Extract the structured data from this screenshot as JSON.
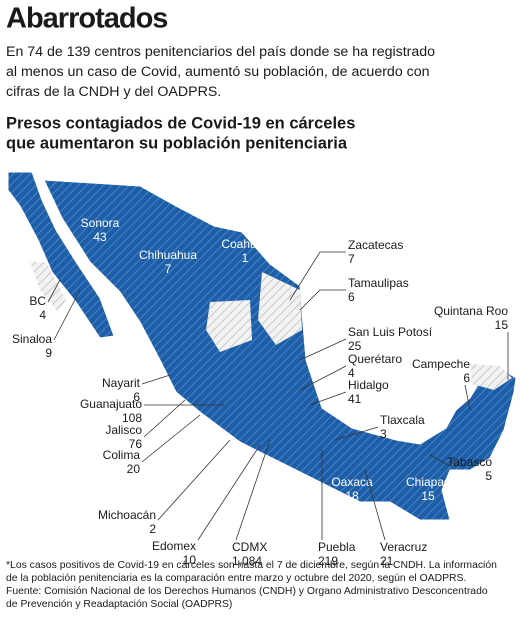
{
  "header": {
    "title": "Abarrotados",
    "intro": [
      "En 74 de 139 centros penitenciarios del país donde se ha registrado",
      "al menos un caso de Covid, aumentó su población, de acuerdo con",
      "cifras de la CNDH y del OADPRS."
    ],
    "subtitle": [
      "Presos contagiados de Covid-19 en cárceles",
      "que aumentaron su población penitenciaria"
    ]
  },
  "states": [
    {
      "name": "Sonora",
      "value": 43
    },
    {
      "name": "Chihuahua",
      "value": 7
    },
    {
      "name": "Coahuila",
      "value": 1
    },
    {
      "name": "Zacatecas",
      "value": 7
    },
    {
      "name": "Tamaulipas",
      "value": 6
    },
    {
      "name": "San Luis Potosí",
      "value": 25
    },
    {
      "name": "Querétaro",
      "value": 4
    },
    {
      "name": "Hidalgo",
      "value": 41
    },
    {
      "name": "Quintana Roo",
      "value": 15
    },
    {
      "name": "Campeche",
      "value": 6
    },
    {
      "name": "Tlaxcala",
      "value": 3
    },
    {
      "name": "Tabasco",
      "value": 5
    },
    {
      "name": "Oaxaca",
      "value": 18
    },
    {
      "name": "Chiapas",
      "value": 15
    },
    {
      "name": "Veracruz",
      "value": 21
    },
    {
      "name": "Puebla",
      "value": 219
    },
    {
      "name": "CDMX",
      "value": {
        "value": 1084,
        "label": "1,084"
      }
    },
    {
      "name": "Edomex",
      "value": 10
    },
    {
      "name": "Michoacán",
      "value": 2
    },
    {
      "name": "Colima",
      "value": 20
    },
    {
      "name": "Jalisco",
      "value": 76
    },
    {
      "name": "Guanajuato",
      "value": 108
    },
    {
      "name": "Nayarit",
      "value": 6
    },
    {
      "name": "Sinaloa",
      "value": 9
    },
    {
      "name": "BC",
      "value": 4
    }
  ],
  "footnote": [
    "*Los casos positivos de Covid-19 en cárceles son hasta el 7 de diciembre, según la CNDH. La información",
    "de la población penitenciaria es la comparación entre marzo y octubre  del 2020, según el OADPRS.",
    "Fuente: Comisión Nacional de los Derechos Humanos (CNDH) y Organo Administrativo Desconcentrado",
    "de Prevención y Readaptación  Social (OADPRS)"
  ]
}
